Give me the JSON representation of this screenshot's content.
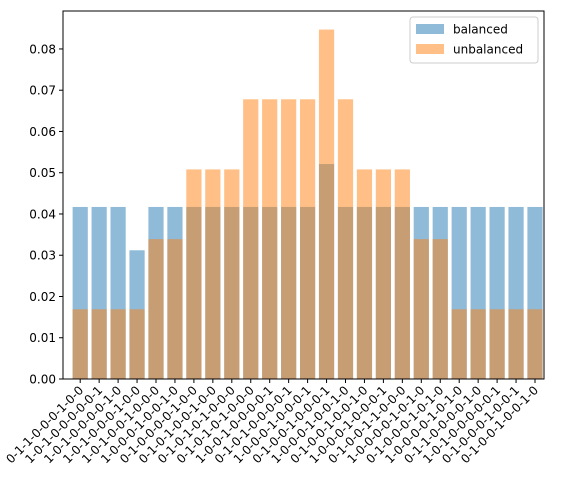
{
  "chart_data": {
    "type": "bar",
    "title": "",
    "xlabel": "",
    "ylabel": "",
    "ylim": [
      0,
      0.0892
    ],
    "yticks": [
      "0.00",
      "0.01",
      "0.02",
      "0.03",
      "0.04",
      "0.05",
      "0.06",
      "0.07",
      "0.08"
    ],
    "ytick_values": [
      0,
      0.01,
      0.02,
      0.03,
      0.04,
      0.05,
      0.06,
      0.07,
      0.08
    ],
    "grid": false,
    "legend_position": "top-right",
    "categories": [
      "0-1-1-0-0-0-1-0-0",
      "1-0-1-0-0-0-0-0-1",
      "1-0-1-0-0-0-0-1-0",
      "1-0-1-0-0-0-1-0-0",
      "1-0-1-0-0-1-0-0-0",
      "1-0-0-0-1-0-0-1-0",
      "0-1-0-0-0-0-1-0-0",
      "0-1-0-1-0-0-1-0-0",
      "0-1-0-1-0-1-0-0-0",
      "0-1-0-1-0-1-0-0-0",
      "1-0-0-1-0-0-0-0-1",
      "0-1-0-1-0-0-0-0-1",
      "1-0-0-0-1-0-0-0-1",
      "0-1-0-0-1-0-0-0-1",
      "1-0-0-0-1-0-0-1-0",
      "0-1-0-0-1-0-0-1-0",
      "1-0-0-0-1-0-0-0-1",
      "0-1-0-0-1-1-0-0-0",
      "1-0-0-0-0-1-0-1-0",
      "0-1-0-0-0-1-0-1-0",
      "1-0-0-0-0-1-0-1-0",
      "0-1-1-0-0-0-0-1-0",
      "1-0-1-0-0-0-0-0-1",
      "0-1-0-0-0-1-0-0-1",
      "0-1-0-0-1-0-0-1-0"
    ],
    "series": [
      {
        "name": "balanced",
        "color": "#1f77b4",
        "opacity": 0.5,
        "values": [
          0.0417,
          0.0417,
          0.0417,
          0.0312,
          0.0417,
          0.0417,
          0.0417,
          0.0417,
          0.0417,
          0.0417,
          0.0417,
          0.0417,
          0.0417,
          0.0521,
          0.0417,
          0.0417,
          0.0417,
          0.0417,
          0.0417,
          0.0417,
          0.0417,
          0.0417,
          0.0417,
          0.0417,
          0.0417
        ]
      },
      {
        "name": "unbalanced",
        "color": "#ff7f0e",
        "opacity": 0.5,
        "values": [
          0.0169,
          0.0169,
          0.0169,
          0.0169,
          0.0339,
          0.0339,
          0.0508,
          0.0508,
          0.0508,
          0.0678,
          0.0678,
          0.0678,
          0.0678,
          0.0847,
          0.0678,
          0.0508,
          0.0508,
          0.0508,
          0.0339,
          0.0339,
          0.0169,
          0.0169,
          0.0169,
          0.0169,
          0.0169
        ]
      }
    ]
  }
}
